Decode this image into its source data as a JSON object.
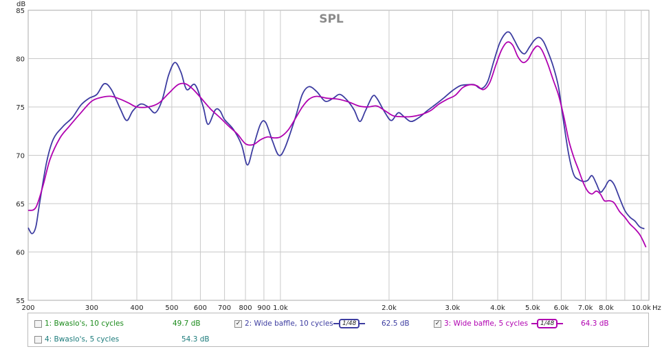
{
  "chart_data": {
    "type": "line",
    "title": "SPL",
    "y_unit_label": "dB",
    "x_unit_label": "Hz",
    "x_scale": "log",
    "xlim": [
      200,
      10500
    ],
    "ylim": [
      55,
      85
    ],
    "grid": true,
    "x_ticks": [
      {
        "value": 200,
        "label": "200"
      },
      {
        "value": 300,
        "label": "300"
      },
      {
        "value": 400,
        "label": "400"
      },
      {
        "value": 500,
        "label": "500"
      },
      {
        "value": 600,
        "label": "600"
      },
      {
        "value": 700,
        "label": "700"
      },
      {
        "value": 800,
        "label": "800"
      },
      {
        "value": 900,
        "label": "900"
      },
      {
        "value": 1000,
        "label": "1.0k"
      },
      {
        "value": 2000,
        "label": "2.0k"
      },
      {
        "value": 3000,
        "label": "3.0k"
      },
      {
        "value": 4000,
        "label": "4.0k"
      },
      {
        "value": 5000,
        "label": "5.0k"
      },
      {
        "value": 6000,
        "label": "6.0k"
      },
      {
        "value": 7000,
        "label": "7.0k"
      },
      {
        "value": 8000,
        "label": "8.0k"
      },
      {
        "value": 9000,
        "label": ""
      },
      {
        "value": 10000,
        "label": "10.0k"
      }
    ],
    "y_ticks": [
      {
        "value": 55,
        "label": "55"
      },
      {
        "value": 60,
        "label": "60"
      },
      {
        "value": 65,
        "label": "65"
      },
      {
        "value": 70,
        "label": "70"
      },
      {
        "value": 75,
        "label": "75"
      },
      {
        "value": 80,
        "label": "80"
      },
      {
        "value": 85,
        "label": "85"
      }
    ],
    "series": [
      {
        "name": "2: Wide baffle, 10 cycles",
        "color": "#3c3ca0",
        "points": [
          [
            200,
            62.5
          ],
          [
            205,
            61.9
          ],
          [
            210,
            62.6
          ],
          [
            215,
            65.0
          ],
          [
            225,
            69.3
          ],
          [
            235,
            71.7
          ],
          [
            250,
            73.0
          ],
          [
            265,
            73.9
          ],
          [
            280,
            75.2
          ],
          [
            295,
            75.9
          ],
          [
            310,
            76.3
          ],
          [
            325,
            77.4
          ],
          [
            340,
            76.8
          ],
          [
            360,
            74.8
          ],
          [
            375,
            73.6
          ],
          [
            390,
            74.6
          ],
          [
            410,
            75.3
          ],
          [
            430,
            75.0
          ],
          [
            450,
            74.4
          ],
          [
            470,
            75.7
          ],
          [
            490,
            78.3
          ],
          [
            510,
            79.6
          ],
          [
            530,
            78.6
          ],
          [
            550,
            76.8
          ],
          [
            580,
            77.3
          ],
          [
            610,
            75.1
          ],
          [
            630,
            73.2
          ],
          [
            660,
            74.7
          ],
          [
            680,
            74.6
          ],
          [
            700,
            73.7
          ],
          [
            740,
            72.7
          ],
          [
            780,
            71.1
          ],
          [
            810,
            69.0
          ],
          [
            840,
            70.8
          ],
          [
            880,
            73.2
          ],
          [
            910,
            73.4
          ],
          [
            950,
            71.5
          ],
          [
            990,
            70.0
          ],
          [
            1030,
            70.8
          ],
          [
            1100,
            73.9
          ],
          [
            1150,
            76.3
          ],
          [
            1200,
            77.1
          ],
          [
            1260,
            76.6
          ],
          [
            1330,
            75.6
          ],
          [
            1400,
            75.9
          ],
          [
            1460,
            76.3
          ],
          [
            1530,
            75.7
          ],
          [
            1600,
            74.7
          ],
          [
            1660,
            73.5
          ],
          [
            1720,
            74.6
          ],
          [
            1800,
            76.1
          ],
          [
            1850,
            75.9
          ],
          [
            1950,
            74.4
          ],
          [
            2030,
            73.6
          ],
          [
            2120,
            74.4
          ],
          [
            2200,
            74.0
          ],
          [
            2300,
            73.5
          ],
          [
            2420,
            73.9
          ],
          [
            2550,
            74.6
          ],
          [
            2700,
            75.3
          ],
          [
            2850,
            76.0
          ],
          [
            3000,
            76.7
          ],
          [
            3150,
            77.2
          ],
          [
            3300,
            77.3
          ],
          [
            3450,
            77.3
          ],
          [
            3600,
            76.9
          ],
          [
            3750,
            77.6
          ],
          [
            3900,
            79.7
          ],
          [
            4050,
            81.6
          ],
          [
            4200,
            82.6
          ],
          [
            4320,
            82.7
          ],
          [
            4450,
            81.9
          ],
          [
            4600,
            80.9
          ],
          [
            4750,
            80.5
          ],
          [
            4900,
            81.2
          ],
          [
            5050,
            81.9
          ],
          [
            5200,
            82.2
          ],
          [
            5350,
            81.8
          ],
          [
            5500,
            80.8
          ],
          [
            5700,
            79.2
          ],
          [
            5900,
            77.0
          ],
          [
            6100,
            73.3
          ],
          [
            6300,
            70.0
          ],
          [
            6500,
            68.0
          ],
          [
            6700,
            67.5
          ],
          [
            6900,
            67.3
          ],
          [
            7100,
            67.4
          ],
          [
            7300,
            67.9
          ],
          [
            7500,
            67.1
          ],
          [
            7700,
            66.2
          ],
          [
            7900,
            66.6
          ],
          [
            8150,
            67.4
          ],
          [
            8400,
            67.0
          ],
          [
            8700,
            65.6
          ],
          [
            9000,
            64.3
          ],
          [
            9300,
            63.6
          ],
          [
            9600,
            63.2
          ],
          [
            9900,
            62.6
          ],
          [
            10200,
            62.4
          ]
        ]
      },
      {
        "name": "3: Wide baffle, 5 cycles",
        "color": "#b000b0",
        "points": [
          [
            200,
            64.3
          ],
          [
            210,
            64.6
          ],
          [
            220,
            66.9
          ],
          [
            230,
            69.6
          ],
          [
            245,
            71.8
          ],
          [
            260,
            73.0
          ],
          [
            280,
            74.4
          ],
          [
            300,
            75.6
          ],
          [
            320,
            76.0
          ],
          [
            340,
            76.1
          ],
          [
            360,
            75.8
          ],
          [
            380,
            75.4
          ],
          [
            400,
            75.0
          ],
          [
            430,
            75.0
          ],
          [
            460,
            75.4
          ],
          [
            490,
            76.4
          ],
          [
            520,
            77.3
          ],
          [
            545,
            77.4
          ],
          [
            570,
            76.9
          ],
          [
            600,
            76.0
          ],
          [
            640,
            74.8
          ],
          [
            680,
            73.9
          ],
          [
            720,
            73.0
          ],
          [
            760,
            72.2
          ],
          [
            800,
            71.2
          ],
          [
            840,
            71.1
          ],
          [
            880,
            71.6
          ],
          [
            920,
            71.9
          ],
          [
            960,
            71.8
          ],
          [
            1000,
            71.9
          ],
          [
            1050,
            72.6
          ],
          [
            1100,
            73.8
          ],
          [
            1150,
            75.0
          ],
          [
            1200,
            75.8
          ],
          [
            1260,
            76.1
          ],
          [
            1350,
            75.9
          ],
          [
            1450,
            75.8
          ],
          [
            1550,
            75.5
          ],
          [
            1650,
            75.1
          ],
          [
            1750,
            75.0
          ],
          [
            1850,
            75.1
          ],
          [
            1950,
            74.6
          ],
          [
            2050,
            74.1
          ],
          [
            2150,
            74.0
          ],
          [
            2300,
            74.0
          ],
          [
            2450,
            74.2
          ],
          [
            2600,
            74.6
          ],
          [
            2750,
            75.3
          ],
          [
            2900,
            75.8
          ],
          [
            3050,
            76.2
          ],
          [
            3200,
            77.0
          ],
          [
            3350,
            77.3
          ],
          [
            3500,
            77.2
          ],
          [
            3650,
            76.8
          ],
          [
            3800,
            77.5
          ],
          [
            3950,
            79.3
          ],
          [
            4100,
            80.9
          ],
          [
            4250,
            81.7
          ],
          [
            4400,
            81.4
          ],
          [
            4550,
            80.2
          ],
          [
            4700,
            79.6
          ],
          [
            4850,
            79.9
          ],
          [
            5000,
            80.8
          ],
          [
            5150,
            81.3
          ],
          [
            5300,
            80.9
          ],
          [
            5500,
            79.5
          ],
          [
            5700,
            77.8
          ],
          [
            5900,
            76.2
          ],
          [
            6100,
            74.0
          ],
          [
            6300,
            71.5
          ],
          [
            6500,
            69.8
          ],
          [
            6700,
            68.5
          ],
          [
            6900,
            67.2
          ],
          [
            7100,
            66.3
          ],
          [
            7300,
            66.0
          ],
          [
            7500,
            66.3
          ],
          [
            7700,
            66.0
          ],
          [
            7900,
            65.3
          ],
          [
            8150,
            65.3
          ],
          [
            8400,
            65.1
          ],
          [
            8700,
            64.2
          ],
          [
            9000,
            63.6
          ],
          [
            9300,
            62.9
          ],
          [
            9600,
            62.4
          ],
          [
            9900,
            61.8
          ],
          [
            10100,
            61.2
          ],
          [
            10300,
            60.5
          ]
        ]
      }
    ]
  },
  "legend": {
    "items": [
      {
        "label": "1: Bwaslo's, 10 cycles",
        "checked": false,
        "check_mark": "",
        "value": "49.7 dB",
        "color": "#1a8a1a"
      },
      {
        "label": "2: Wide baffle, 10 cycles",
        "checked": true,
        "check_mark": "✓",
        "value": "62.5 dB",
        "color": "#3c3ca0",
        "smoothing": "1/48"
      },
      {
        "label": "3: Wide baffle, 5 cycles",
        "checked": true,
        "check_mark": "✓",
        "value": "64.3 dB",
        "color": "#b000b0",
        "smoothing": "1/48"
      },
      {
        "label": "4: Bwaslo's, 5 cycles",
        "checked": false,
        "check_mark": "",
        "value": "54.3 dB",
        "color": "#1a7a7a"
      }
    ]
  }
}
